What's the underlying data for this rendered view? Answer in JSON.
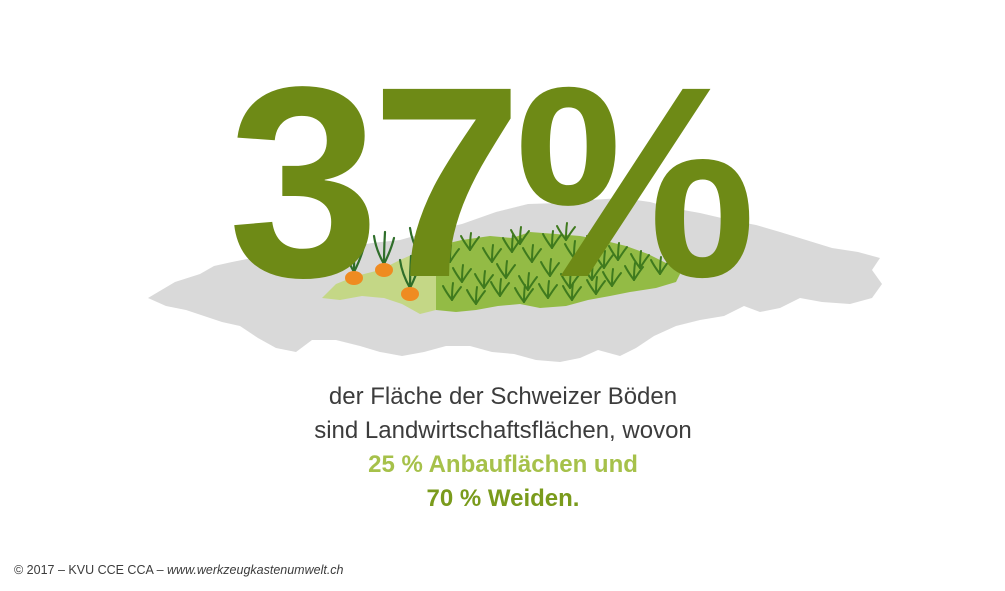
{
  "headline": {
    "value": "37",
    "symbol": "%"
  },
  "caption": {
    "line1": "der Fläche der Schweizer Böden",
    "line2": "sind Landwirtschaftsflächen, wovon",
    "line3": "25 % Anbauflächen und",
    "line4": "70 % Weiden."
  },
  "credit": {
    "prefix": "© 2017 – KVU CCE CCA – ",
    "url": "www.werkzeugkastenumwelt.ch"
  },
  "colors": {
    "headline": "#6e8a16",
    "map_gray": "#d9d9d9",
    "crop_area": "#c4d786",
    "pasture": "#93bb45",
    "carrot": "#ef8b21",
    "highlight_crop": "#a6c14a",
    "highlight_pasture": "#7a9b1c"
  },
  "icons": [
    "switzerland-map",
    "carrot-icon",
    "grass-tuft-icon"
  ]
}
